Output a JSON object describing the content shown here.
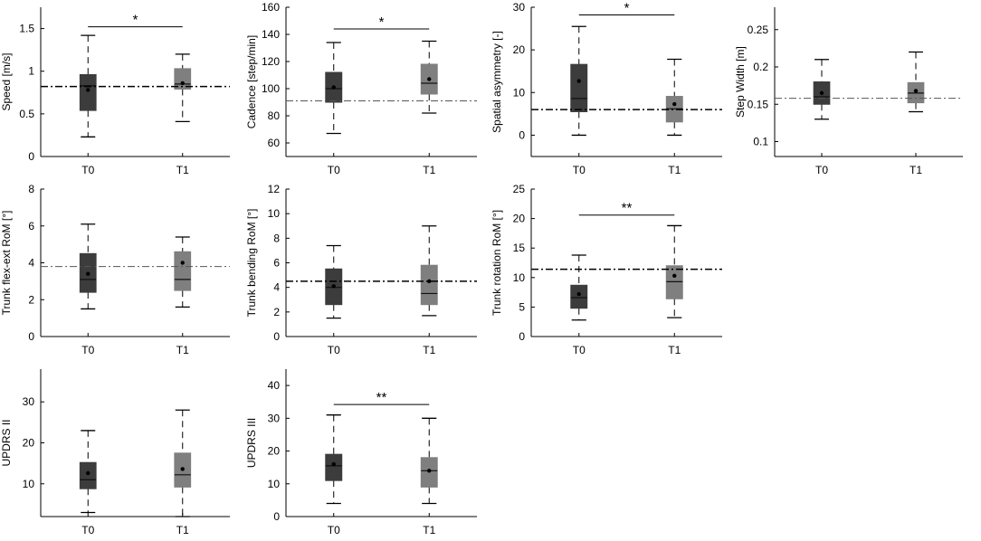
{
  "colors": {
    "t0_box": "#3c3c3c",
    "t1_box": "#7f7f7f",
    "axis": "#000000",
    "whisker": "#000000"
  },
  "chart_data": [
    {
      "id": "speed",
      "type": "boxplot",
      "ylabel": "Speed [m/s]",
      "ylim": [
        0,
        1.75
      ],
      "yticks": [
        0,
        0.5,
        1,
        1.5
      ],
      "ytick_labels": [
        "0",
        "0.5",
        "1",
        "1.5"
      ],
      "categories": [
        "T0",
        "T1"
      ],
      "boxes": [
        {
          "name": "T0",
          "min": 0.23,
          "q1": 0.54,
          "median": 0.83,
          "q3": 0.96,
          "max": 1.42,
          "mean": 0.78
        },
        {
          "name": "T1",
          "min": 0.41,
          "q1": 0.79,
          "median": 0.85,
          "q3": 1.03,
          "max": 1.2,
          "mean": 0.86
        }
      ],
      "reference_line": 0.82,
      "ref_style": "bold",
      "significance": {
        "label": "*",
        "y": 1.52
      }
    },
    {
      "id": "cadence",
      "type": "boxplot",
      "ylabel": "Cadence [step/min]",
      "ylim": [
        50,
        160
      ],
      "yticks": [
        60,
        80,
        100,
        120,
        140,
        160
      ],
      "ytick_labels": [
        "60",
        "80",
        "100",
        "120",
        "140",
        "160"
      ],
      "categories": [
        "T0",
        "T1"
      ],
      "boxes": [
        {
          "name": "T0",
          "min": 67,
          "q1": 90,
          "median": 100,
          "q3": 112,
          "max": 134,
          "mean": 101
        },
        {
          "name": "T1",
          "min": 82,
          "q1": 96,
          "median": 104,
          "q3": 118,
          "max": 135,
          "mean": 107
        }
      ],
      "reference_line": 91,
      "ref_style": "light",
      "significance": {
        "label": "*",
        "y": 144
      }
    },
    {
      "id": "spatial-asymmetry",
      "type": "boxplot",
      "ylabel": "Spatial asymmetry [-]",
      "ylim": [
        -5,
        30
      ],
      "yticks": [
        0,
        10,
        20,
        30
      ],
      "ytick_labels": [
        "0",
        "10",
        "20",
        "30"
      ],
      "categories": [
        "T0",
        "T1"
      ],
      "boxes": [
        {
          "name": "T0",
          "min": 0,
          "q1": 5.5,
          "median": 8.6,
          "q3": 16.6,
          "max": 25.5,
          "mean": 12.7
        },
        {
          "name": "T1",
          "min": 0,
          "q1": 3.1,
          "median": 6.2,
          "q3": 9.1,
          "max": 17.8,
          "mean": 7.3
        }
      ],
      "reference_line": 6,
      "ref_style": "bold",
      "significance": {
        "label": "*",
        "y": 28.2
      }
    },
    {
      "id": "step-width",
      "type": "boxplot",
      "ylabel": "Step Width [m]",
      "ylim": [
        0.08,
        0.28
      ],
      "yticks": [
        0.1,
        0.15,
        0.2,
        0.25
      ],
      "ytick_labels": [
        "0.1",
        "0.15",
        "0.2",
        "0.25"
      ],
      "categories": [
        "T0",
        "T1"
      ],
      "boxes": [
        {
          "name": "T0",
          "min": 0.13,
          "q1": 0.15,
          "median": 0.16,
          "q3": 0.18,
          "max": 0.21,
          "mean": 0.165
        },
        {
          "name": "T1",
          "min": 0.14,
          "q1": 0.152,
          "median": 0.165,
          "q3": 0.179,
          "max": 0.22,
          "mean": 0.168
        }
      ],
      "reference_line": 0.158,
      "ref_style": "light",
      "significance": null
    },
    {
      "id": "trunk-flex-ext",
      "type": "boxplot",
      "ylabel": "Trunk flex-ext RoM [°]",
      "ylim": [
        0,
        8
      ],
      "yticks": [
        0,
        2,
        4,
        6,
        8
      ],
      "ytick_labels": [
        "0",
        "2",
        "4",
        "6",
        "8"
      ],
      "categories": [
        "T0",
        "T1"
      ],
      "boxes": [
        {
          "name": "T0",
          "min": 1.5,
          "q1": 2.4,
          "median": 3.1,
          "q3": 4.5,
          "max": 6.1,
          "mean": 3.4
        },
        {
          "name": "T1",
          "min": 1.6,
          "q1": 2.5,
          "median": 3.1,
          "q3": 4.6,
          "max": 5.4,
          "mean": 4
        }
      ],
      "reference_line": 3.8,
      "ref_style": "light",
      "significance": null
    },
    {
      "id": "trunk-bending",
      "type": "boxplot",
      "ylabel": "Trunk bending RoM [°]",
      "ylim": [
        0,
        12
      ],
      "yticks": [
        0,
        2,
        4,
        6,
        8,
        10,
        12
      ],
      "ytick_labels": [
        "0",
        "2",
        "4",
        "6",
        "8",
        "10",
        "12"
      ],
      "categories": [
        "T0",
        "T1"
      ],
      "boxes": [
        {
          "name": "T0",
          "min": 1.5,
          "q1": 2.6,
          "median": 4,
          "q3": 5.5,
          "max": 7.4,
          "mean": 4.1
        },
        {
          "name": "T1",
          "min": 1.7,
          "q1": 2.6,
          "median": 3.5,
          "q3": 5.8,
          "max": 9,
          "mean": 4.5
        }
      ],
      "reference_line": 4.5,
      "ref_style": "bold",
      "significance": null
    },
    {
      "id": "trunk-rotation",
      "type": "boxplot",
      "ylabel": "Trunk rotation RoM [°]",
      "ylim": [
        0,
        25
      ],
      "yticks": [
        0,
        5,
        10,
        15,
        20,
        25
      ],
      "ytick_labels": [
        "0",
        "5",
        "10",
        "15",
        "20",
        "25"
      ],
      "categories": [
        "T0",
        "T1"
      ],
      "boxes": [
        {
          "name": "T0",
          "min": 2.8,
          "q1": 4.8,
          "median": 6.6,
          "q3": 8.7,
          "max": 13.8,
          "mean": 7.2
        },
        {
          "name": "T1",
          "min": 3.2,
          "q1": 6.4,
          "median": 9.3,
          "q3": 12,
          "max": 18.8,
          "mean": 10.3
        }
      ],
      "reference_line": 11.4,
      "ref_style": "bold",
      "significance": {
        "label": "**",
        "y": 20.6
      }
    },
    {
      "id": "updrs-ii",
      "type": "boxplot",
      "ylabel": "UPDRS II",
      "ylim": [
        2,
        38
      ],
      "yticks": [
        10,
        20,
        30
      ],
      "ytick_labels": [
        "10",
        "20",
        "30"
      ],
      "categories": [
        "T0",
        "T1"
      ],
      "boxes": [
        {
          "name": "T0",
          "min": 3,
          "q1": 8.8,
          "median": 11,
          "q3": 15.2,
          "max": 23,
          "mean": 12.6
        },
        {
          "name": "T1",
          "min": 2,
          "q1": 9.2,
          "median": 12.2,
          "q3": 17.5,
          "max": 28,
          "mean": 13.6
        }
      ],
      "reference_line": null,
      "ref_style": "none",
      "significance": null
    },
    {
      "id": "updrs-iii",
      "type": "boxplot",
      "ylabel": "UPDRS III",
      "ylim": [
        0,
        45
      ],
      "yticks": [
        0,
        10,
        20,
        30,
        40
      ],
      "ytick_labels": [
        "0",
        "10",
        "20",
        "30",
        "40"
      ],
      "categories": [
        "T0",
        "T1"
      ],
      "boxes": [
        {
          "name": "T0",
          "min": 4,
          "q1": 11,
          "median": 15.5,
          "q3": 19,
          "max": 31,
          "mean": 16
        },
        {
          "name": "T1",
          "min": 4,
          "q1": 9,
          "median": 14,
          "q3": 18,
          "max": 30,
          "mean": 14
        }
      ],
      "reference_line": null,
      "ref_style": "none",
      "significance": {
        "label": "**",
        "y": 34.2
      }
    }
  ]
}
